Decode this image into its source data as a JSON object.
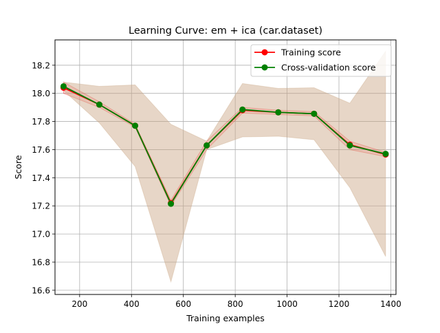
{
  "chart_data": {
    "type": "line",
    "title": "Learning Curve: em + ica (car.dataset)",
    "xlabel": "Training examples",
    "ylabel": "Score",
    "xlim": [
      105,
      1420
    ],
    "ylim": [
      16.57,
      18.38
    ],
    "xticks": [
      200,
      400,
      600,
      800,
      1000,
      1200,
      1400
    ],
    "yticks": [
      16.6,
      16.8,
      17.0,
      17.2,
      17.4,
      17.6,
      17.8,
      18.0,
      18.2
    ],
    "xtick_labels": [
      "200",
      "400",
      "600",
      "800",
      "1000",
      "1200",
      "1400"
    ],
    "ytick_labels": [
      "16.6",
      "16.8",
      "17.0",
      "17.2",
      "17.4",
      "17.6",
      "17.8",
      "18.0",
      "18.2"
    ],
    "grid": true,
    "legend_position": "top-right",
    "x": [
      138,
      276,
      414,
      552,
      690,
      828,
      966,
      1104,
      1242,
      1380
    ],
    "series": [
      {
        "name": "Training score",
        "color": "#ff0000",
        "values": [
          18.04,
          17.92,
          17.77,
          17.22,
          17.63,
          17.88,
          17.865,
          17.855,
          17.635,
          17.565
        ],
        "band_lower": [
          18.0,
          17.9,
          17.76,
          17.2,
          17.6,
          17.86,
          17.85,
          17.84,
          17.6,
          17.55
        ],
        "band_upper": [
          18.08,
          17.94,
          17.78,
          17.24,
          17.66,
          17.9,
          17.88,
          17.87,
          17.66,
          17.58
        ],
        "band_color": "#ff0000"
      },
      {
        "name": "Cross-validation score",
        "color": "#008000",
        "values": [
          18.05,
          17.92,
          17.77,
          17.215,
          17.63,
          17.885,
          17.865,
          17.855,
          17.63,
          17.57
        ],
        "band_lower": [
          18.02,
          17.79,
          17.48,
          16.66,
          17.6,
          17.69,
          17.695,
          17.67,
          17.33,
          16.84
        ],
        "band_upper": [
          18.08,
          18.05,
          18.06,
          17.78,
          17.66,
          18.07,
          18.035,
          18.04,
          17.93,
          18.3
        ],
        "band_color": "#c9a583"
      }
    ]
  }
}
